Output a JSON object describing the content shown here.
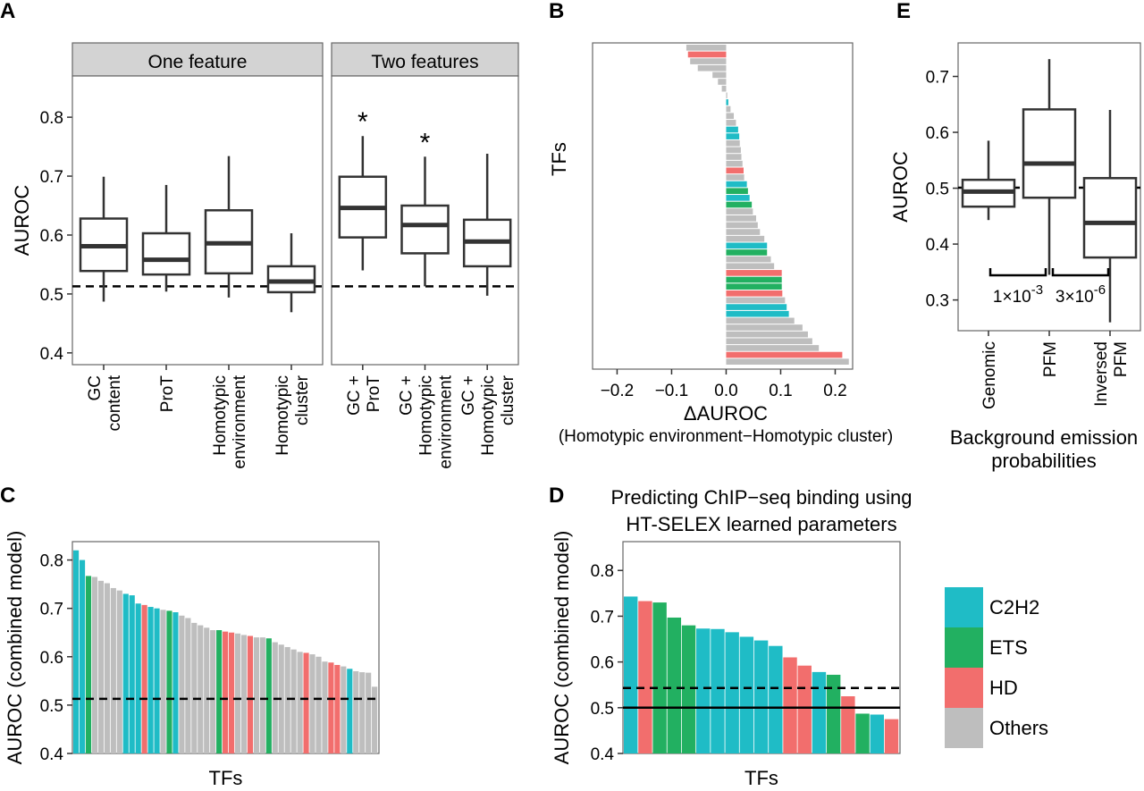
{
  "panels": {
    "A": "A",
    "B": "B",
    "C": "C",
    "D": "D",
    "E": "E"
  },
  "colors": {
    "C2H2": "#1fbcc6",
    "ETS": "#22b061",
    "HD": "#f26e6d",
    "Others": "#bebebe",
    "strip_bg": "#d3d3d3"
  },
  "chart_data": [
    {
      "id": "A",
      "type": "box",
      "ylabel": "AUROC",
      "ylim": [
        0.38,
        0.87
      ],
      "yticks": [
        0.4,
        0.5,
        0.6,
        0.7,
        0.8
      ],
      "ytick_labels": [
        "0.4",
        "0.5",
        "0.6",
        "0.7",
        "0.8"
      ],
      "reference_line": 0.513,
      "facets": [
        {
          "title": "One feature",
          "boxes": [
            {
              "label": [
                "GC",
                "content"
              ],
              "whisker_low": 0.487,
              "q1": 0.539,
              "median": 0.581,
              "q3": 0.628,
              "whisker_high": 0.699,
              "star": ""
            },
            {
              "label": [
                "ProT"
              ],
              "whisker_low": 0.504,
              "q1": 0.533,
              "median": 0.558,
              "q3": 0.603,
              "whisker_high": 0.685,
              "star": ""
            },
            {
              "label": [
                "Homotypic",
                "environment"
              ],
              "whisker_low": 0.494,
              "q1": 0.535,
              "median": 0.586,
              "q3": 0.642,
              "whisker_high": 0.734,
              "star": ""
            },
            {
              "label": [
                "Homotypic",
                "cluster"
              ],
              "whisker_low": 0.469,
              "q1": 0.503,
              "median": 0.521,
              "q3": 0.547,
              "whisker_high": 0.603,
              "star": ""
            }
          ]
        },
        {
          "title": "Two features",
          "boxes": [
            {
              "label": [
                "GC +",
                "ProT"
              ],
              "whisker_low": 0.54,
              "q1": 0.596,
              "median": 0.646,
              "q3": 0.699,
              "whisker_high": 0.768,
              "star": "*"
            },
            {
              "label": [
                "GC +",
                "Homotypic",
                "environment"
              ],
              "whisker_low": 0.513,
              "q1": 0.569,
              "median": 0.617,
              "q3": 0.65,
              "whisker_high": 0.733,
              "star": "*"
            },
            {
              "label": [
                "GC +",
                "Homotypic",
                "cluster"
              ],
              "whisker_low": 0.497,
              "q1": 0.547,
              "median": 0.589,
              "q3": 0.626,
              "whisker_high": 0.738,
              "star": ""
            }
          ]
        }
      ]
    },
    {
      "id": "B",
      "type": "bar",
      "orientation": "horizontal",
      "ylabel": "TFs",
      "xlabel": "ΔAUROC",
      "xlabel2": "(Homotypic environment−Homotypic cluster)",
      "xlim": [
        -0.245,
        0.232
      ],
      "xticks": [
        -0.2,
        -0.1,
        0.0,
        0.1,
        0.2
      ],
      "xtick_labels": [
        "−0.2",
        "−0.1",
        "0.0",
        "0.1",
        "0.2"
      ],
      "bars": [
        {
          "value": -0.073,
          "family": "Others"
        },
        {
          "value": -0.07,
          "family": "HD"
        },
        {
          "value": -0.066,
          "family": "Others"
        },
        {
          "value": -0.052,
          "family": "Others"
        },
        {
          "value": -0.025,
          "family": "Others"
        },
        {
          "value": -0.015,
          "family": "Others"
        },
        {
          "value": -0.008,
          "family": "Others"
        },
        {
          "value": 0.002,
          "family": "Others"
        },
        {
          "value": 0.004,
          "family": "C2H2"
        },
        {
          "value": 0.008,
          "family": "Others"
        },
        {
          "value": 0.014,
          "family": "Others"
        },
        {
          "value": 0.018,
          "family": "Others"
        },
        {
          "value": 0.022,
          "family": "C2H2"
        },
        {
          "value": 0.024,
          "family": "C2H2"
        },
        {
          "value": 0.025,
          "family": "Others"
        },
        {
          "value": 0.027,
          "family": "Others"
        },
        {
          "value": 0.028,
          "family": "Others"
        },
        {
          "value": 0.03,
          "family": "Others"
        },
        {
          "value": 0.032,
          "family": "HD"
        },
        {
          "value": 0.033,
          "family": "Others"
        },
        {
          "value": 0.038,
          "family": "C2H2"
        },
        {
          "value": 0.04,
          "family": "ETS"
        },
        {
          "value": 0.043,
          "family": "C2H2"
        },
        {
          "value": 0.047,
          "family": "ETS"
        },
        {
          "value": 0.049,
          "family": "Others"
        },
        {
          "value": 0.055,
          "family": "Others"
        },
        {
          "value": 0.058,
          "family": "Others"
        },
        {
          "value": 0.062,
          "family": "Others"
        },
        {
          "value": 0.07,
          "family": "Others"
        },
        {
          "value": 0.075,
          "family": "C2H2"
        },
        {
          "value": 0.075,
          "family": "ETS"
        },
        {
          "value": 0.082,
          "family": "Others"
        },
        {
          "value": 0.088,
          "family": "Others"
        },
        {
          "value": 0.102,
          "family": "HD"
        },
        {
          "value": 0.102,
          "family": "ETS"
        },
        {
          "value": 0.102,
          "family": "ETS"
        },
        {
          "value": 0.103,
          "family": "HD"
        },
        {
          "value": 0.108,
          "family": "Others"
        },
        {
          "value": 0.111,
          "family": "C2H2"
        },
        {
          "value": 0.115,
          "family": "C2H2"
        },
        {
          "value": 0.125,
          "family": "Others"
        },
        {
          "value": 0.14,
          "family": "Others"
        },
        {
          "value": 0.15,
          "family": "Others"
        },
        {
          "value": 0.158,
          "family": "Others"
        },
        {
          "value": 0.17,
          "family": "Others"
        },
        {
          "value": 0.213,
          "family": "HD"
        },
        {
          "value": 0.225,
          "family": "Others"
        }
      ]
    },
    {
      "id": "C",
      "type": "bar",
      "ylabel": "AUROC (combined model)",
      "xlabel": "TFs",
      "ylim": [
        0.4,
        0.838
      ],
      "yticks": [
        0.4,
        0.5,
        0.6,
        0.7,
        0.8
      ],
      "ytick_labels": [
        "0.4",
        "0.5",
        "0.6",
        "0.7",
        "0.8"
      ],
      "reference_line": 0.513,
      "bars": [
        {
          "value": 0.82,
          "family": "C2H2"
        },
        {
          "value": 0.8,
          "family": "C2H2"
        },
        {
          "value": 0.767,
          "family": "ETS"
        },
        {
          "value": 0.765,
          "family": "Others"
        },
        {
          "value": 0.757,
          "family": "Others"
        },
        {
          "value": 0.752,
          "family": "Others"
        },
        {
          "value": 0.742,
          "family": "Others"
        },
        {
          "value": 0.737,
          "family": "Others"
        },
        {
          "value": 0.73,
          "family": "C2H2"
        },
        {
          "value": 0.727,
          "family": "C2H2"
        },
        {
          "value": 0.71,
          "family": "C2H2"
        },
        {
          "value": 0.707,
          "family": "HD"
        },
        {
          "value": 0.703,
          "family": "C2H2"
        },
        {
          "value": 0.7,
          "family": "C2H2"
        },
        {
          "value": 0.697,
          "family": "Others"
        },
        {
          "value": 0.695,
          "family": "ETS"
        },
        {
          "value": 0.692,
          "family": "C2H2"
        },
        {
          "value": 0.685,
          "family": "Others"
        },
        {
          "value": 0.68,
          "family": "Others"
        },
        {
          "value": 0.67,
          "family": "Others"
        },
        {
          "value": 0.665,
          "family": "Others"
        },
        {
          "value": 0.66,
          "family": "Others"
        },
        {
          "value": 0.655,
          "family": "Others"
        },
        {
          "value": 0.655,
          "family": "ETS"
        },
        {
          "value": 0.652,
          "family": "HD"
        },
        {
          "value": 0.65,
          "family": "HD"
        },
        {
          "value": 0.648,
          "family": "Others"
        },
        {
          "value": 0.645,
          "family": "Others"
        },
        {
          "value": 0.643,
          "family": "HD"
        },
        {
          "value": 0.64,
          "family": "Others"
        },
        {
          "value": 0.64,
          "family": "Others"
        },
        {
          "value": 0.638,
          "family": "ETS"
        },
        {
          "value": 0.63,
          "family": "Others"
        },
        {
          "value": 0.625,
          "family": "Others"
        },
        {
          "value": 0.62,
          "family": "Others"
        },
        {
          "value": 0.615,
          "family": "Others"
        },
        {
          "value": 0.61,
          "family": "Others"
        },
        {
          "value": 0.608,
          "family": "HD"
        },
        {
          "value": 0.605,
          "family": "Others"
        },
        {
          "value": 0.6,
          "family": "Others"
        },
        {
          "value": 0.59,
          "family": "Others"
        },
        {
          "value": 0.588,
          "family": "HD"
        },
        {
          "value": 0.583,
          "family": "HD"
        },
        {
          "value": 0.58,
          "family": "Others"
        },
        {
          "value": 0.575,
          "family": "C2H2"
        },
        {
          "value": 0.57,
          "family": "Others"
        },
        {
          "value": 0.568,
          "family": "Others"
        },
        {
          "value": 0.567,
          "family": "Others"
        },
        {
          "value": 0.538,
          "family": "Others"
        }
      ]
    },
    {
      "id": "D",
      "type": "bar",
      "title": "Predicting ChIP−seq binding using",
      "title2": "HT-SELEX learned parameters",
      "ylabel": "AUROC (combined model)",
      "xlabel": "TFs",
      "ylim": [
        0.4,
        0.863
      ],
      "yticks": [
        0.4,
        0.5,
        0.6,
        0.7,
        0.8
      ],
      "ytick_labels": [
        "0.4",
        "0.5",
        "0.6",
        "0.7",
        "0.8"
      ],
      "reference_lines": [
        0.543,
        0.5
      ],
      "bars": [
        {
          "value": 0.743,
          "family": "C2H2"
        },
        {
          "value": 0.733,
          "family": "HD"
        },
        {
          "value": 0.73,
          "family": "ETS"
        },
        {
          "value": 0.697,
          "family": "ETS"
        },
        {
          "value": 0.68,
          "family": "ETS"
        },
        {
          "value": 0.673,
          "family": "C2H2"
        },
        {
          "value": 0.672,
          "family": "C2H2"
        },
        {
          "value": 0.665,
          "family": "C2H2"
        },
        {
          "value": 0.655,
          "family": "C2H2"
        },
        {
          "value": 0.647,
          "family": "C2H2"
        },
        {
          "value": 0.635,
          "family": "C2H2"
        },
        {
          "value": 0.61,
          "family": "HD"
        },
        {
          "value": 0.592,
          "family": "HD"
        },
        {
          "value": 0.578,
          "family": "C2H2"
        },
        {
          "value": 0.572,
          "family": "ETS"
        },
        {
          "value": 0.525,
          "family": "HD"
        },
        {
          "value": 0.487,
          "family": "ETS"
        },
        {
          "value": 0.485,
          "family": "C2H2"
        },
        {
          "value": 0.475,
          "family": "HD"
        }
      ]
    },
    {
      "id": "E",
      "type": "box",
      "ylabel": "AUROC",
      "xlabel": "Background emission",
      "xlabel2": "probabilities",
      "ylim": [
        0.245,
        0.76
      ],
      "yticks": [
        0.3,
        0.4,
        0.5,
        0.6,
        0.7
      ],
      "ytick_labels": [
        "0.3",
        "0.4",
        "0.5",
        "0.6",
        "0.7"
      ],
      "reference_line": 0.501,
      "boxes": [
        {
          "label": [
            "Genomic"
          ],
          "whisker_low": 0.443,
          "q1": 0.467,
          "median": 0.494,
          "q3": 0.515,
          "whisker_high": 0.585
        },
        {
          "label": [
            "PFM"
          ],
          "whisker_low": 0.345,
          "q1": 0.483,
          "median": 0.544,
          "q3": 0.641,
          "whisker_high": 0.731
        },
        {
          "label": [
            "Inversed",
            "PFM"
          ],
          "whisker_low": 0.26,
          "q1": 0.376,
          "median": 0.438,
          "q3": 0.518,
          "whisker_high": 0.64
        }
      ],
      "pvalues": [
        {
          "base": "1×10",
          "exp": "-3"
        },
        {
          "base": "3×10",
          "exp": "-6"
        }
      ]
    }
  ],
  "legend": {
    "placement": "right",
    "entries": [
      {
        "label": "C2H2",
        "family": "C2H2"
      },
      {
        "label": "ETS",
        "family": "ETS"
      },
      {
        "label": "HD",
        "family": "HD"
      },
      {
        "label": "Others",
        "family": "Others"
      }
    ]
  }
}
